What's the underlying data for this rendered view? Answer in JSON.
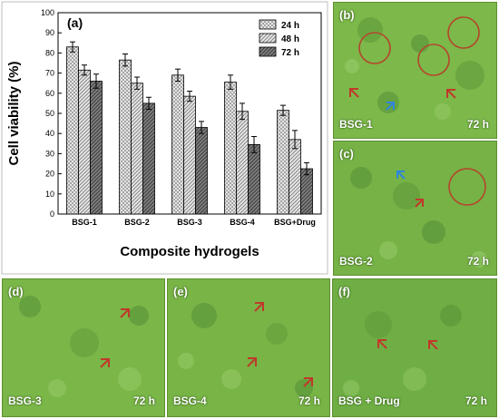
{
  "chart_data": {
    "type": "bar",
    "panel_label": "(a)",
    "xlabel": "Composite hydrogels",
    "ylabel": "Cell viability (%)",
    "ylim": [
      0,
      100
    ],
    "yticks": [
      "0",
      "10",
      "20",
      "30",
      "40",
      "50",
      "60",
      "70",
      "80",
      "90",
      "100"
    ],
    "categories": [
      "BSG-1",
      "BSG-2",
      "BSG-3",
      "BSG-4",
      "BSG+Drug"
    ],
    "legend_position": "top-right",
    "grid": false,
    "series": [
      {
        "name": "24 h",
        "values": [
          83,
          76.5,
          69,
          65.5,
          51.5
        ],
        "errors": [
          2.5,
          3,
          3,
          3.5,
          2.5
        ],
        "pattern": "cross-hatch"
      },
      {
        "name": "48 h",
        "values": [
          71.5,
          65,
          58.5,
          51,
          37
        ],
        "errors": [
          2.5,
          3,
          2.5,
          4,
          4.5
        ],
        "pattern": "diagonal-light"
      },
      {
        "name": "72 h",
        "values": [
          66,
          55,
          43,
          34.5,
          22.5
        ],
        "errors": [
          3.5,
          3,
          3,
          4,
          3
        ],
        "pattern": "diagonal-dark"
      }
    ]
  },
  "micrographs": [
    {
      "letter": "(b)",
      "name": "BSG-1",
      "time": "72 h"
    },
    {
      "letter": "(c)",
      "name": "BSG-2",
      "time": "72 h"
    },
    {
      "letter": "(d)",
      "name": "BSG-3",
      "time": "72 h"
    },
    {
      "letter": "(e)",
      "name": "BSG-4",
      "time": "72 h"
    },
    {
      "letter": "(f)",
      "name": "BSG + Drug",
      "time": "72 h"
    }
  ]
}
